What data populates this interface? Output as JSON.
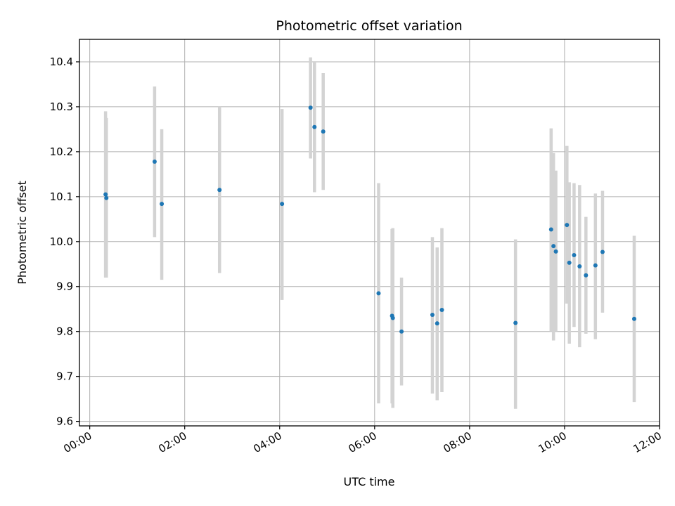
{
  "chart_data": {
    "type": "scatter",
    "title": "Photometric offset variation",
    "xlabel": "UTC time",
    "ylabel": "Photometric offset",
    "xlim": [
      "-0:13",
      "12:00"
    ],
    "ylim": [
      9.59,
      10.45
    ],
    "grid": true,
    "x_ticks": [
      "00:00",
      "02:00",
      "04:00",
      "06:00",
      "08:00",
      "10:00",
      "12:00"
    ],
    "y_ticks": [
      "9.6",
      "9.7",
      "9.8",
      "9.9",
      "10.0",
      "10.1",
      "10.2",
      "10.3",
      "10.4"
    ],
    "point_color": "#1f77b4",
    "errorbar_color": "#d3d3d3",
    "series": [
      {
        "points": [
          {
            "x": "00:20",
            "y": 10.105,
            "ylo": 9.92,
            "yhi": 10.29
          },
          {
            "x": "00:21",
            "y": 10.097,
            "ylo": 9.92,
            "yhi": 10.275
          },
          {
            "x": "01:22",
            "y": 10.178,
            "ylo": 10.01,
            "yhi": 10.345
          },
          {
            "x": "01:31",
            "y": 10.084,
            "ylo": 9.915,
            "yhi": 10.25
          },
          {
            "x": "02:44",
            "y": 10.115,
            "ylo": 9.93,
            "yhi": 10.3
          },
          {
            "x": "04:03",
            "y": 10.084,
            "ylo": 9.87,
            "yhi": 10.295
          },
          {
            "x": "04:39",
            "y": 10.298,
            "ylo": 10.185,
            "yhi": 10.41
          },
          {
            "x": "04:44",
            "y": 10.255,
            "ylo": 10.11,
            "yhi": 10.4
          },
          {
            "x": "04:55",
            "y": 10.245,
            "ylo": 10.115,
            "yhi": 10.375
          },
          {
            "x": "06:05",
            "y": 9.885,
            "ylo": 9.64,
            "yhi": 10.13
          },
          {
            "x": "06:22",
            "y": 9.835,
            "ylo": 9.64,
            "yhi": 10.028
          },
          {
            "x": "06:23",
            "y": 9.83,
            "ylo": 9.63,
            "yhi": 10.03
          },
          {
            "x": "06:34",
            "y": 9.8,
            "ylo": 9.68,
            "yhi": 9.92
          },
          {
            "x": "07:13",
            "y": 9.837,
            "ylo": 9.662,
            "yhi": 10.01
          },
          {
            "x": "07:19",
            "y": 9.818,
            "ylo": 9.647,
            "yhi": 9.987
          },
          {
            "x": "07:25",
            "y": 9.848,
            "ylo": 9.665,
            "yhi": 10.03
          },
          {
            "x": "08:58",
            "y": 9.819,
            "ylo": 9.628,
            "yhi": 10.005
          },
          {
            "x": "09:43",
            "y": 10.027,
            "ylo": 9.8,
            "yhi": 10.252
          },
          {
            "x": "09:46",
            "y": 9.99,
            "ylo": 9.78,
            "yhi": 10.197
          },
          {
            "x": "09:49",
            "y": 9.978,
            "ylo": 9.8,
            "yhi": 10.158
          },
          {
            "x": "10:03",
            "y": 10.037,
            "ylo": 9.862,
            "yhi": 10.213
          },
          {
            "x": "10:06",
            "y": 9.953,
            "ylo": 9.773,
            "yhi": 10.132
          },
          {
            "x": "10:12",
            "y": 9.97,
            "ylo": 9.81,
            "yhi": 10.13
          },
          {
            "x": "10:19",
            "y": 9.945,
            "ylo": 9.765,
            "yhi": 10.126
          },
          {
            "x": "10:27",
            "y": 9.925,
            "ylo": 9.795,
            "yhi": 10.055
          },
          {
            "x": "10:39",
            "y": 9.947,
            "ylo": 9.783,
            "yhi": 10.107
          },
          {
            "x": "10:48",
            "y": 9.977,
            "ylo": 9.842,
            "yhi": 10.113
          },
          {
            "x": "11:28",
            "y": 9.828,
            "ylo": 9.643,
            "yhi": 10.013
          }
        ]
      }
    ]
  }
}
